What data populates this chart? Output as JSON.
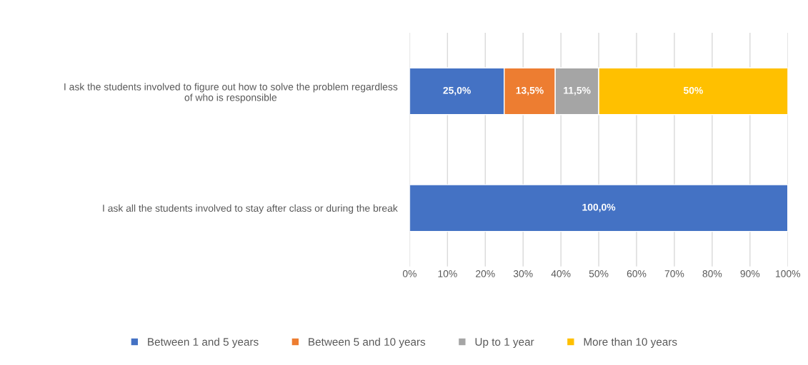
{
  "chart_data": {
    "type": "bar",
    "orientation": "horizontal",
    "stacked": true,
    "categories": [
      "I ask the students involved to figure out how to solve the problem regardless\nof who is responsible",
      "I ask all the students involved to stay after class or during the break"
    ],
    "series": [
      {
        "name": "Between 1 and 5 years",
        "color": "#4472c4",
        "values": [
          25.0,
          100.0
        ],
        "value_labels": [
          "25,0%",
          "100,0%"
        ]
      },
      {
        "name": "Between 5 and 10 years",
        "color": "#ed7d31",
        "values": [
          13.5,
          null
        ],
        "value_labels": [
          "13,5%",
          null
        ]
      },
      {
        "name": "Up to 1 year",
        "color": "#a5a5a5",
        "values": [
          11.5,
          null
        ],
        "value_labels": [
          "11,5%",
          null
        ]
      },
      {
        "name": "More than 10 years",
        "color": "#ffc000",
        "values": [
          50,
          null
        ],
        "value_labels": [
          "50%",
          null
        ]
      }
    ],
    "xlim": [
      0,
      100
    ],
    "xticks": [
      {
        "value": 0,
        "label": "0%"
      },
      {
        "value": 10,
        "label": "10%"
      },
      {
        "value": 20,
        "label": "20%"
      },
      {
        "value": 30,
        "label": "30%"
      },
      {
        "value": 40,
        "label": "40%"
      },
      {
        "value": 50,
        "label": "50%"
      },
      {
        "value": 60,
        "label": "60%"
      },
      {
        "value": 70,
        "label": "70%"
      },
      {
        "value": 80,
        "label": "80%"
      },
      {
        "value": 90,
        "label": "90%"
      },
      {
        "value": 100,
        "label": "100%"
      }
    ],
    "grid": "x",
    "legend": "bottom"
  }
}
